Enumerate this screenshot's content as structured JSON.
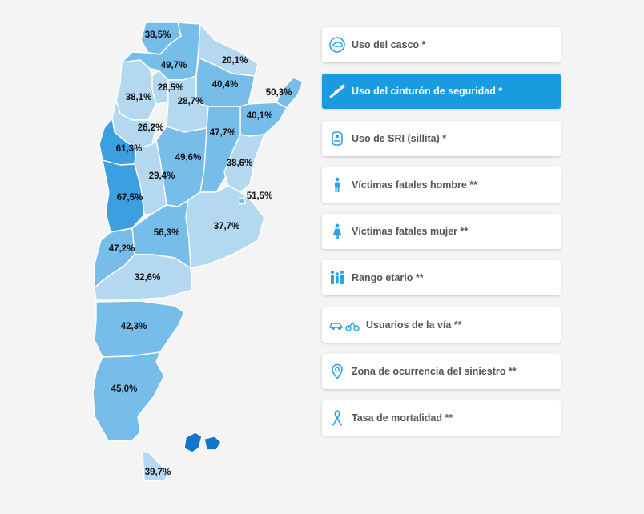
{
  "map": {
    "provinces": [
      {
        "name_id": "jujuy",
        "value": "38,5%",
        "level": 1
      },
      {
        "name_id": "salta",
        "value": "49,7%",
        "level": 1
      },
      {
        "name_id": "formosa",
        "value": "20,1%",
        "level": 0
      },
      {
        "name_id": "tucuman",
        "value": "28,5%",
        "level": 0
      },
      {
        "name_id": "chaco",
        "value": "40,4%",
        "level": 1
      },
      {
        "name_id": "misiones",
        "value": "50,3%",
        "level": 1
      },
      {
        "name_id": "catamarca",
        "value": "38,1%",
        "level": 0
      },
      {
        "name_id": "santiago-del-estero",
        "value": "28,7%",
        "level": 0
      },
      {
        "name_id": "corrientes",
        "value": "40,1%",
        "level": 1
      },
      {
        "name_id": "la-rioja",
        "value": "26,2%",
        "level": 0
      },
      {
        "name_id": "santa-fe",
        "value": "47,7%",
        "level": 1
      },
      {
        "name_id": "san-juan",
        "value": "61,3%",
        "level": 2
      },
      {
        "name_id": "cordoba",
        "value": "49,6%",
        "level": 1
      },
      {
        "name_id": "entre-rios",
        "value": "38,6%",
        "level": 0
      },
      {
        "name_id": "san-luis",
        "value": "29,4%",
        "level": 0
      },
      {
        "name_id": "caba",
        "value": "51,5%",
        "level": 1
      },
      {
        "name_id": "mendoza",
        "value": "67,5%",
        "level": 2
      },
      {
        "name_id": "buenos-aires",
        "value": "37,7%",
        "level": 0
      },
      {
        "name_id": "la-pampa",
        "value": "56,3%",
        "level": 1
      },
      {
        "name_id": "neuquen",
        "value": "47,2%",
        "level": 1
      },
      {
        "name_id": "rio-negro",
        "value": "32,6%",
        "level": 0
      },
      {
        "name_id": "chubut",
        "value": "42,3%",
        "level": 1
      },
      {
        "name_id": "santa-cruz",
        "value": "45,0%",
        "level": 1
      },
      {
        "name_id": "malvinas",
        "value": "",
        "level": 3
      },
      {
        "name_id": "tierra-del-fuego",
        "value": "39,7%",
        "level": 0
      }
    ],
    "colors": [
      "#b4d8f0",
      "#77bde9",
      "#3c9fe0",
      "#1176c9"
    ]
  },
  "menu": {
    "items": [
      {
        "id": "uso-casco",
        "label": "Uso del casco *",
        "icon": "helmet-icon",
        "active": false
      },
      {
        "id": "uso-cinturon",
        "label": "Uso del cinturón de seguridad *",
        "icon": "seatbelt-icon",
        "active": true
      },
      {
        "id": "uso-sri",
        "label": "Uso de SRI (sillita) *",
        "icon": "child-seat-icon",
        "active": false
      },
      {
        "id": "victimas-hombre",
        "label": "Víctimas fatales hombre **",
        "icon": "man-icon",
        "active": false
      },
      {
        "id": "victimas-mujer",
        "label": "Víctimas fatales mujer **",
        "icon": "woman-icon",
        "active": false
      },
      {
        "id": "rango-etario",
        "label": "Rango etario **",
        "icon": "family-icon",
        "active": false
      },
      {
        "id": "usuarios-via",
        "label": "Usuarios de la vía **",
        "icon": "vehicles-icon",
        "active": false
      },
      {
        "id": "zona-ocurrencia",
        "label": "Zona de ocurrencia del siniestro **",
        "icon": "location-pin-icon",
        "active": false
      },
      {
        "id": "tasa-mortalidad",
        "label": "Tasa de mortalidad **",
        "icon": "ribbon-icon",
        "active": false
      }
    ],
    "accent": "#1a9be0",
    "icon_color": "#29a3e3"
  }
}
